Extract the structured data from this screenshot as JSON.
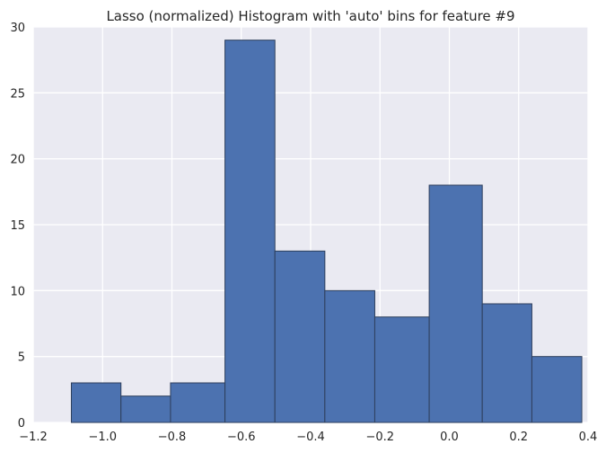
{
  "chart_data": {
    "type": "bar",
    "subtype": "histogram",
    "title": "Lasso (normalized) Histogram with 'auto' bins for feature #9",
    "xlabel": "",
    "ylabel": "",
    "xlim": [
      -1.2,
      0.4
    ],
    "ylim": [
      0,
      30
    ],
    "grid": true,
    "bin_edges": [
      -1.09,
      -0.947,
      -0.804,
      -0.647,
      -0.503,
      -0.359,
      -0.215,
      -0.058,
      0.095,
      0.238,
      0.382
    ],
    "counts": [
      3,
      2,
      3,
      29,
      13,
      10,
      8,
      18,
      9,
      5
    ],
    "x_ticks": [
      -1.2,
      -1.0,
      -0.8,
      -0.6,
      -0.4,
      -0.2,
      0.0,
      0.2,
      0.4
    ],
    "x_tick_labels": [
      "−1.2",
      "−1.0",
      "−0.8",
      "−0.6",
      "−0.4",
      "−0.2",
      "0.0",
      "0.2",
      "0.4"
    ],
    "y_ticks": [
      0,
      5,
      10,
      15,
      20,
      25,
      30
    ],
    "y_tick_labels": [
      "0",
      "5",
      "10",
      "15",
      "20",
      "25",
      "30"
    ],
    "colors": {
      "bar_fill": "#4c72b0",
      "bar_edge": "#2e3f5c",
      "plot_background": "#eaeaf2",
      "grid": "#ffffff"
    }
  }
}
